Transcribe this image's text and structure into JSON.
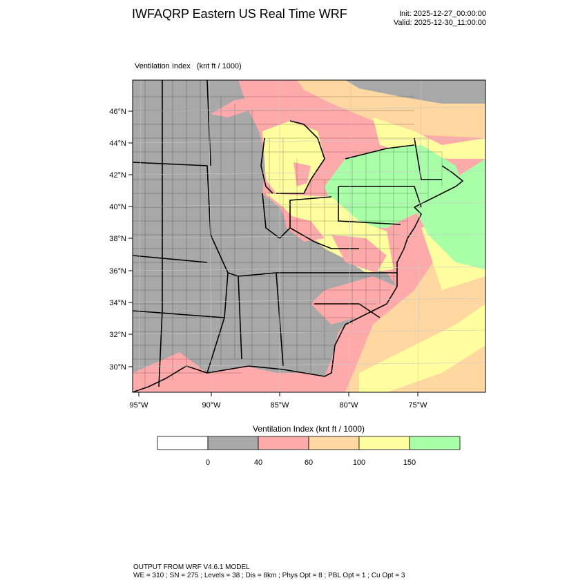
{
  "header": {
    "title": "IWFAQRP Eastern US Real Time WRF",
    "init": "Init: 2025-12-27_00:00:00",
    "valid": "Valid: 2025-12-30_11:00:00"
  },
  "field": {
    "name": "Ventilation Index",
    "units": "(knt ft / 1000)"
  },
  "map": {
    "lat_ticks": [
      "46°N",
      "44°N",
      "42°N",
      "40°N",
      "38°N",
      "36°N",
      "34°N",
      "32°N",
      "30°N"
    ],
    "lon_ticks": [
      "95°W",
      "90°W",
      "85°W",
      "80°W",
      "75°W"
    ],
    "colors": {
      "land_low": "#a8a8a8",
      "pink": "#ffaaaa",
      "tan": "#ffd7a0",
      "yellow": "#ffff9f",
      "green": "#a8ffa8",
      "outline": "#000000"
    }
  },
  "colorbar": {
    "title": "Ventilation Index  (knt ft / 1000)",
    "levels": [
      "0",
      "40",
      "60",
      "100",
      "150"
    ],
    "colors": [
      "#ffffff",
      "#a8a8a8",
      "#ffaaaa",
      "#ffd7a0",
      "#ffff9f",
      "#a8ffa8"
    ]
  },
  "footer": {
    "line1": "OUTPUT FROM WRF V4.6.1 MODEL",
    "line2": "WE = 310 ; SN = 275 ; Levels = 38 ; Dis = 8km ; Phys Opt = 8 ; PBL Opt = 1 ; Cu Opt = 3"
  }
}
